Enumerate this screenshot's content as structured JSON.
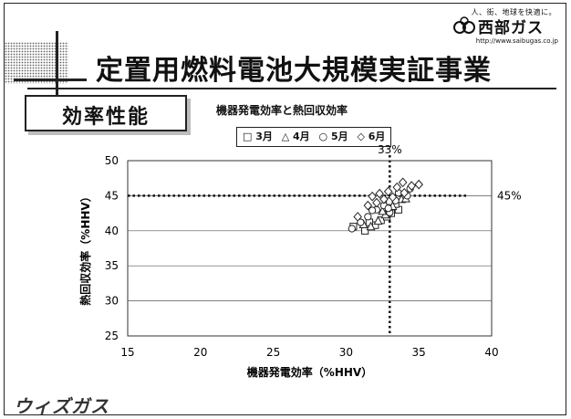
{
  "header": {
    "tagline": "人、街、地球を快適に。",
    "company_name": "西部ガス",
    "url": "http://www.saibugas.co.jp",
    "title": "定置用燃料電池大規模実証事業"
  },
  "section": {
    "label": "効率性能"
  },
  "footer": {
    "logo_text": "ウィズガス"
  },
  "chart_data": {
    "type": "scatter",
    "title": "機器発電効率と熱回収効率",
    "xlabel": "機器発電効率（%HHV）",
    "ylabel": "熱回収効率（%HHV）",
    "xlim": [
      15,
      40
    ],
    "ylim": [
      25,
      50
    ],
    "xticks": [
      15,
      20,
      25,
      30,
      35,
      40
    ],
    "yticks": [
      25,
      30,
      35,
      40,
      45,
      50
    ],
    "grid": "horizontal",
    "legend_position": "top",
    "reference_lines": [
      {
        "axis": "x",
        "value": 33,
        "label": "33%"
      },
      {
        "axis": "y",
        "value": 45,
        "label": "45%"
      }
    ],
    "series": [
      {
        "name": "3月",
        "marker": "square",
        "points": [
          [
            31.3,
            40.0
          ],
          [
            32.0,
            40.8
          ],
          [
            32.4,
            41.5
          ],
          [
            32.8,
            42.0
          ],
          [
            33.1,
            42.5
          ],
          [
            33.6,
            43.0
          ],
          [
            33.0,
            44.2
          ],
          [
            31.6,
            41.2
          ],
          [
            33.4,
            43.8
          ],
          [
            30.5,
            40.6
          ]
        ]
      },
      {
        "name": "4月",
        "marker": "triangle",
        "points": [
          [
            31.7,
            40.6
          ],
          [
            32.2,
            41.4
          ],
          [
            32.7,
            42.3
          ],
          [
            33.2,
            43.5
          ],
          [
            33.8,
            44.5
          ],
          [
            32.5,
            42.8
          ],
          [
            31.2,
            40.9
          ],
          [
            34.1,
            44.6
          ]
        ]
      },
      {
        "name": "5月",
        "marker": "circle",
        "points": [
          [
            30.4,
            40.3
          ],
          [
            31.0,
            41.2
          ],
          [
            31.5,
            42.0
          ],
          [
            32.1,
            43.0
          ],
          [
            32.6,
            43.6
          ],
          [
            33.4,
            44.3
          ],
          [
            34.2,
            45.0
          ],
          [
            33.0,
            42.6
          ],
          [
            34.4,
            46.0
          ],
          [
            32.9,
            43.2
          ],
          [
            31.8,
            42.9
          ],
          [
            33.6,
            45.4
          ]
        ]
      },
      {
        "name": "6月",
        "marker": "diamond",
        "points": [
          [
            31.8,
            44.9
          ],
          [
            32.3,
            45.3
          ],
          [
            32.9,
            45.6
          ],
          [
            33.5,
            46.2
          ],
          [
            33.9,
            46.9
          ],
          [
            34.5,
            46.4
          ],
          [
            35.0,
            46.6
          ],
          [
            32.6,
            44.5
          ],
          [
            33.2,
            44.8
          ],
          [
            34.0,
            45.4
          ],
          [
            30.8,
            42.0
          ],
          [
            31.5,
            43.6
          ],
          [
            32.1,
            44.0
          ]
        ]
      }
    ]
  }
}
